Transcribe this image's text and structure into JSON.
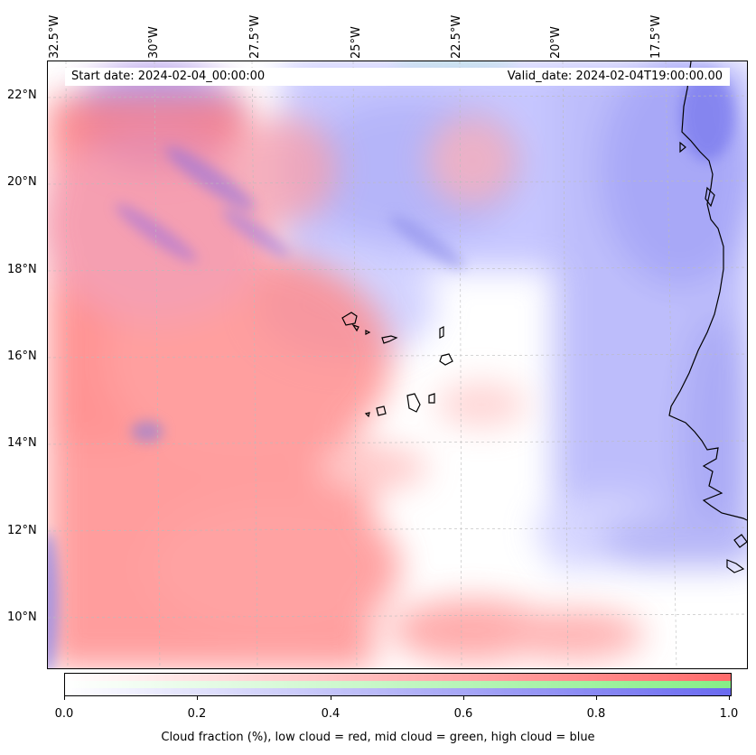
{
  "map": {
    "start_date": "Start date: 2024-02-04_00:00:00",
    "valid_date": "Valid_date: 2024-02-04T19:00:00.00",
    "longitude_labels": [
      "32.5°W",
      "30°W",
      "27.5°W",
      "25°W",
      "22.5°W",
      "20°W",
      "17.5°W"
    ],
    "latitude_labels": [
      "22°N",
      "20°N",
      "18°N",
      "16°N",
      "14°N",
      "12°N",
      "10°N"
    ],
    "layers": [
      {
        "name": "low cloud",
        "color": "#ff6b6b"
      },
      {
        "name": "mid cloud",
        "color": "#7ee07e"
      },
      {
        "name": "high cloud",
        "color": "#6a6af0"
      }
    ]
  },
  "colorbar": {
    "ticks": [
      "0.0",
      "0.2",
      "0.4",
      "0.6",
      "0.8",
      "1.0"
    ],
    "label": "Cloud fraction (%), low cloud = red, mid cloud = green, high cloud = blue",
    "colors": {
      "low": "#ff6b6b",
      "mid": "#86ee86",
      "high": "#6a6af0"
    }
  }
}
